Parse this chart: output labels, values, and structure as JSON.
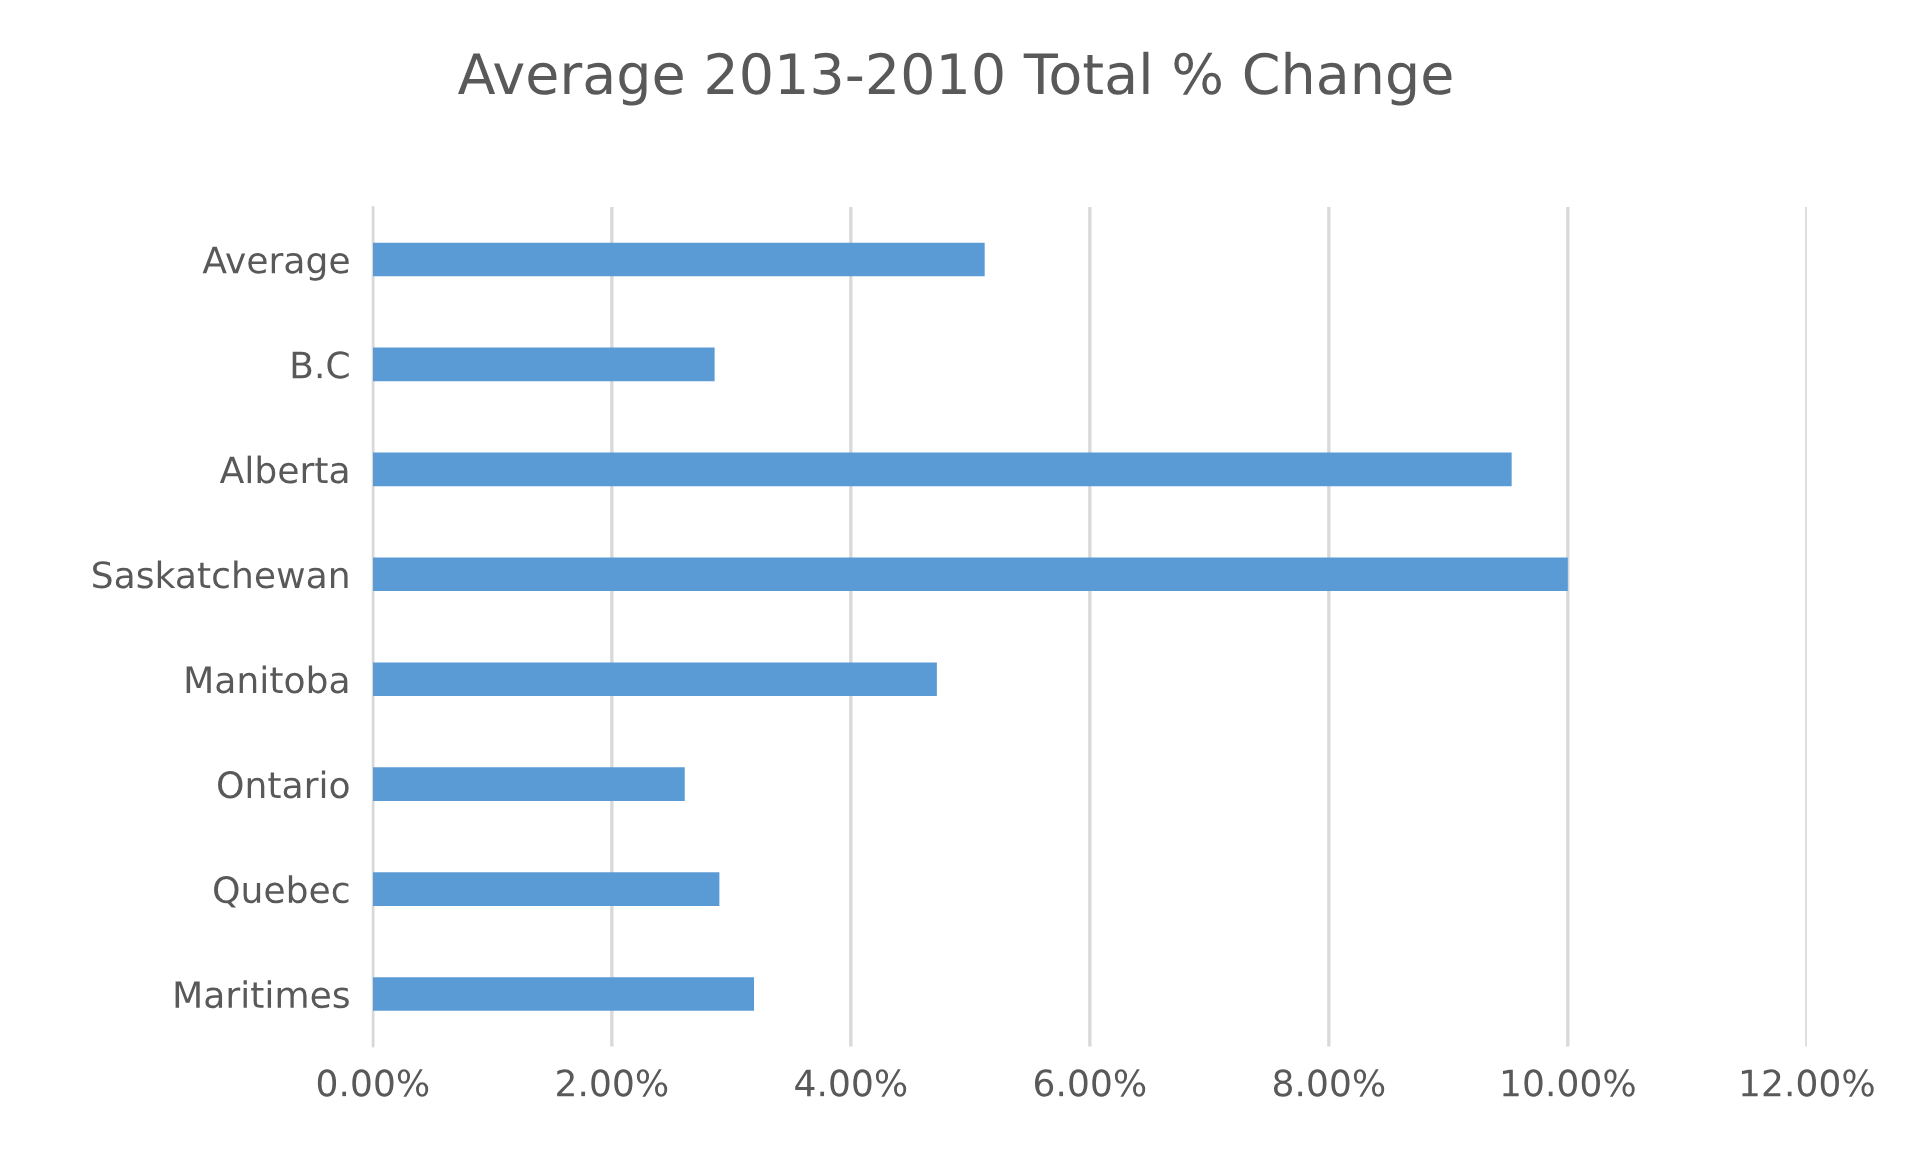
{
  "chart_data": {
    "type": "bar",
    "orientation": "horizontal",
    "title": "Average 2013-2010 Total % Change",
    "categories": [
      "Average",
      "B.C",
      "Alberta",
      "Saskatchewan",
      "Manitoba",
      "Ontario",
      "Quebec",
      "Maritimes"
    ],
    "values": [
      5.12,
      2.86,
      9.53,
      10.0,
      4.72,
      2.61,
      2.9,
      3.19
    ],
    "color": "#5b9bd5",
    "xlim": [
      0,
      12
    ],
    "xticks": [
      {
        "value": 0,
        "label": "0.00%"
      },
      {
        "value": 2,
        "label": "2.00%"
      },
      {
        "value": 4,
        "label": "4.00%"
      },
      {
        "value": 6,
        "label": "6.00%"
      },
      {
        "value": 8,
        "label": "8.00%"
      },
      {
        "value": 10,
        "label": "10.00%"
      },
      {
        "value": 12,
        "label": "12.00%"
      }
    ],
    "grid": "x"
  }
}
